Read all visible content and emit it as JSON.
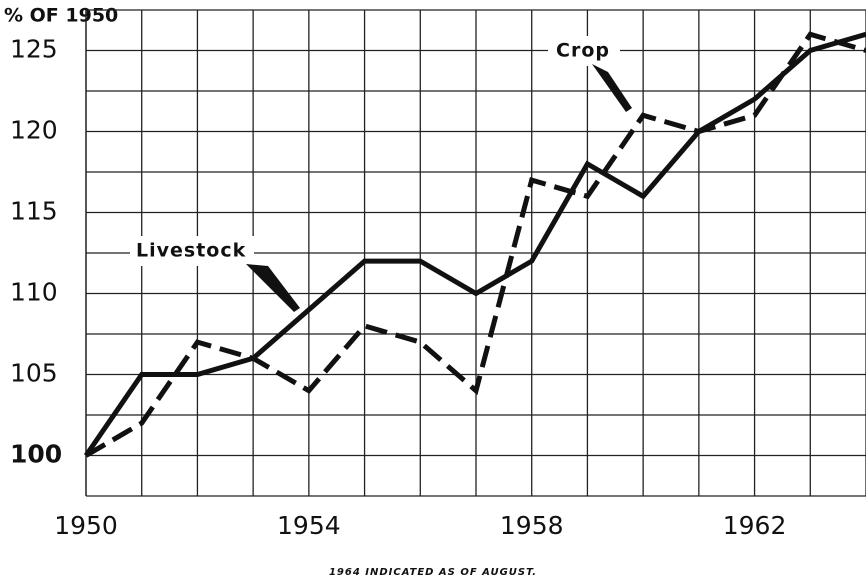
{
  "chart_data": {
    "type": "line",
    "y_axis_label": "% OF 1950",
    "footnote": "1964 INDICATED AS OF AUGUST.",
    "annotations": [
      "Crop",
      "Livestock"
    ],
    "x": [
      1950,
      1951,
      1952,
      1953,
      1954,
      1955,
      1956,
      1957,
      1958,
      1959,
      1960,
      1961,
      1962,
      1963,
      1964
    ],
    "series": [
      {
        "name": "Livestock",
        "color": "#111111",
        "dash": "solid",
        "values": [
          100,
          105,
          105,
          106,
          109,
          112,
          112,
          110,
          112,
          118,
          116,
          120,
          122,
          125,
          126
        ]
      },
      {
        "name": "Crop",
        "color": "#111111",
        "dash": "dashed",
        "values": [
          100,
          102,
          107,
          106,
          104,
          108,
          107,
          104,
          117,
          116,
          121,
          120,
          121,
          126,
          125
        ]
      }
    ],
    "xlim": [
      1950,
      1964
    ],
    "xticks": [
      1950,
      1954,
      1958,
      1962
    ],
    "ylim": [
      97.5,
      127.5
    ],
    "yticks": [
      100,
      105,
      110,
      115,
      120,
      125
    ],
    "grid": true
  }
}
